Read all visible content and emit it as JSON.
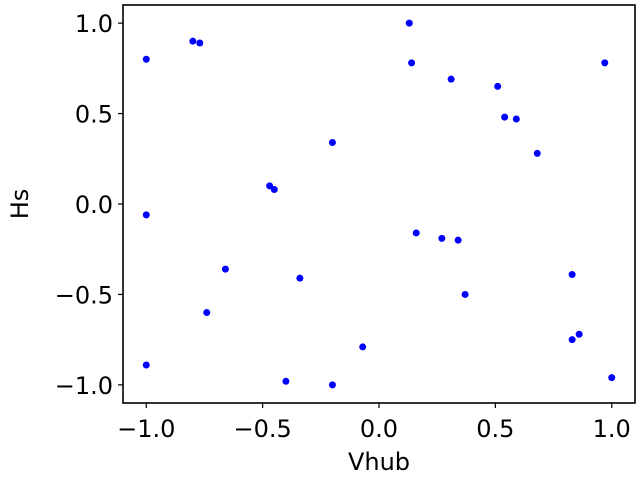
{
  "chart_data": {
    "type": "scatter",
    "title": "",
    "xlabel": "Vhub",
    "ylabel": "Hs",
    "xlim": [
      -1.1,
      1.1
    ],
    "ylim": [
      -1.1,
      1.1
    ],
    "xticks": [
      {
        "value": -1.0,
        "label": "−1.0"
      },
      {
        "value": -0.5,
        "label": "−0.5"
      },
      {
        "value": 0.0,
        "label": "0.0"
      },
      {
        "value": 0.5,
        "label": "0.5"
      },
      {
        "value": 1.0,
        "label": "1.0"
      }
    ],
    "yticks": [
      {
        "value": -1.0,
        "label": "−1.0"
      },
      {
        "value": -0.5,
        "label": "−0.5"
      },
      {
        "value": 0.0,
        "label": "0.0"
      },
      {
        "value": 0.5,
        "label": "0.5"
      },
      {
        "value": 1.0,
        "label": "1.0"
      }
    ],
    "grid": false,
    "legend": "none",
    "marker_color": "#0000ff",
    "points": [
      {
        "x": -1.0,
        "y": 0.8
      },
      {
        "x": -1.0,
        "y": -0.06
      },
      {
        "x": -1.0,
        "y": -0.89
      },
      {
        "x": -0.8,
        "y": 0.9
      },
      {
        "x": -0.77,
        "y": 0.89
      },
      {
        "x": -0.74,
        "y": -0.6
      },
      {
        "x": -0.66,
        "y": -0.36
      },
      {
        "x": -0.47,
        "y": 0.1
      },
      {
        "x": -0.45,
        "y": 0.08
      },
      {
        "x": -0.4,
        "y": -0.98
      },
      {
        "x": -0.34,
        "y": -0.41
      },
      {
        "x": -0.2,
        "y": 0.34
      },
      {
        "x": -0.2,
        "y": -1.0
      },
      {
        "x": -0.07,
        "y": -0.79
      },
      {
        "x": 0.13,
        "y": 1.0
      },
      {
        "x": 0.14,
        "y": 0.78
      },
      {
        "x": 0.16,
        "y": -0.16
      },
      {
        "x": 0.27,
        "y": -0.19
      },
      {
        "x": 0.31,
        "y": 0.69
      },
      {
        "x": 0.34,
        "y": -0.2
      },
      {
        "x": 0.37,
        "y": -0.5
      },
      {
        "x": 0.51,
        "y": 0.65
      },
      {
        "x": 0.54,
        "y": 0.48
      },
      {
        "x": 0.59,
        "y": 0.47
      },
      {
        "x": 0.68,
        "y": 0.28
      },
      {
        "x": 0.83,
        "y": -0.39
      },
      {
        "x": 0.83,
        "y": -0.75
      },
      {
        "x": 0.86,
        "y": -0.72
      },
      {
        "x": 0.97,
        "y": 0.78
      },
      {
        "x": 1.0,
        "y": -0.96
      }
    ]
  }
}
